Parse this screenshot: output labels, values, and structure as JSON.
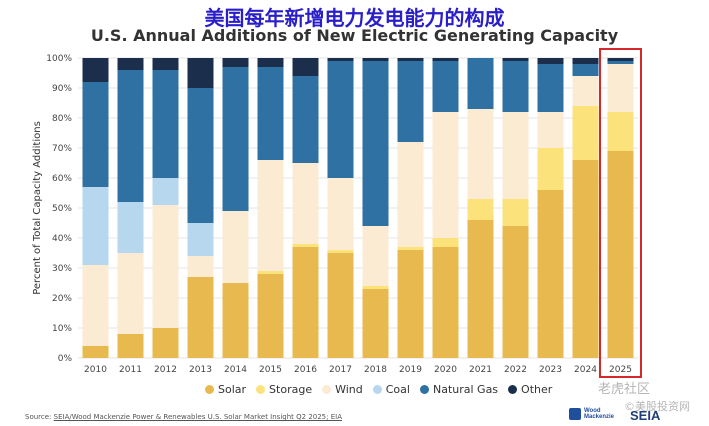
{
  "cn_title": "美国每年新增电力发电能力的构成",
  "source": {
    "prefix": "Source: ",
    "text": "SEIA/Wood Mackenzie Power & Renewables U.S. Solar Market Insight Q2 2025; EIA"
  },
  "logos": {
    "wood_mackenzie": "Wood Mackenzie",
    "seia": "SEIA"
  },
  "watermarks": {
    "line1": "老虎社区",
    "line2": "©美股投资网"
  },
  "highlight_year": "2025",
  "highlight_color": "#d62828",
  "chart_data": {
    "type": "bar",
    "stacked": true,
    "title": "U.S. Annual Additions of New Electric Generating Capacity",
    "xlabel": "",
    "ylabel": "Percent of Total Capacity Additions",
    "ylim": [
      0,
      100
    ],
    "y_ticks": [
      "0%",
      "10%",
      "20%",
      "30%",
      "40%",
      "50%",
      "60%",
      "70%",
      "80%",
      "90%",
      "100%"
    ],
    "categories": [
      "2010",
      "2011",
      "2012",
      "2013",
      "2014",
      "2015",
      "2016",
      "2017",
      "2018",
      "2019",
      "2020",
      "2021",
      "2022",
      "2023",
      "2024",
      "2025"
    ],
    "legend_position": "bottom",
    "series": [
      {
        "name": "Solar",
        "color": "#e8b94e",
        "values": [
          4,
          8,
          10,
          27,
          25,
          28,
          37,
          35,
          23,
          36,
          37,
          46,
          44,
          56,
          66,
          69
        ]
      },
      {
        "name": "Storage",
        "color": "#fbe27b",
        "values": [
          0,
          0,
          0,
          0,
          0,
          1,
          1,
          1,
          1,
          1,
          3,
          7,
          9,
          14,
          18,
          13
        ]
      },
      {
        "name": "Wind",
        "color": "#fbebd3",
        "values": [
          27,
          27,
          41,
          7,
          24,
          37,
          27,
          24,
          20,
          35,
          42,
          30,
          29,
          12,
          10,
          16
        ]
      },
      {
        "name": "Coal",
        "color": "#b6d7ee",
        "values": [
          26,
          17,
          9,
          11,
          0,
          0,
          0,
          0,
          0,
          0,
          0,
          0,
          0,
          0,
          0,
          0
        ]
      },
      {
        "name": "Natural Gas",
        "color": "#2e71a2",
        "values": [
          35,
          44,
          36,
          45,
          48,
          31,
          29,
          39,
          55,
          27,
          17,
          17,
          17,
          16,
          4,
          1
        ]
      },
      {
        "name": "Other",
        "color": "#1b2f4c",
        "values": [
          8,
          4,
          4,
          10,
          3,
          3,
          6,
          1,
          1,
          1,
          1,
          0,
          1,
          2,
          2,
          1
        ]
      }
    ]
  }
}
